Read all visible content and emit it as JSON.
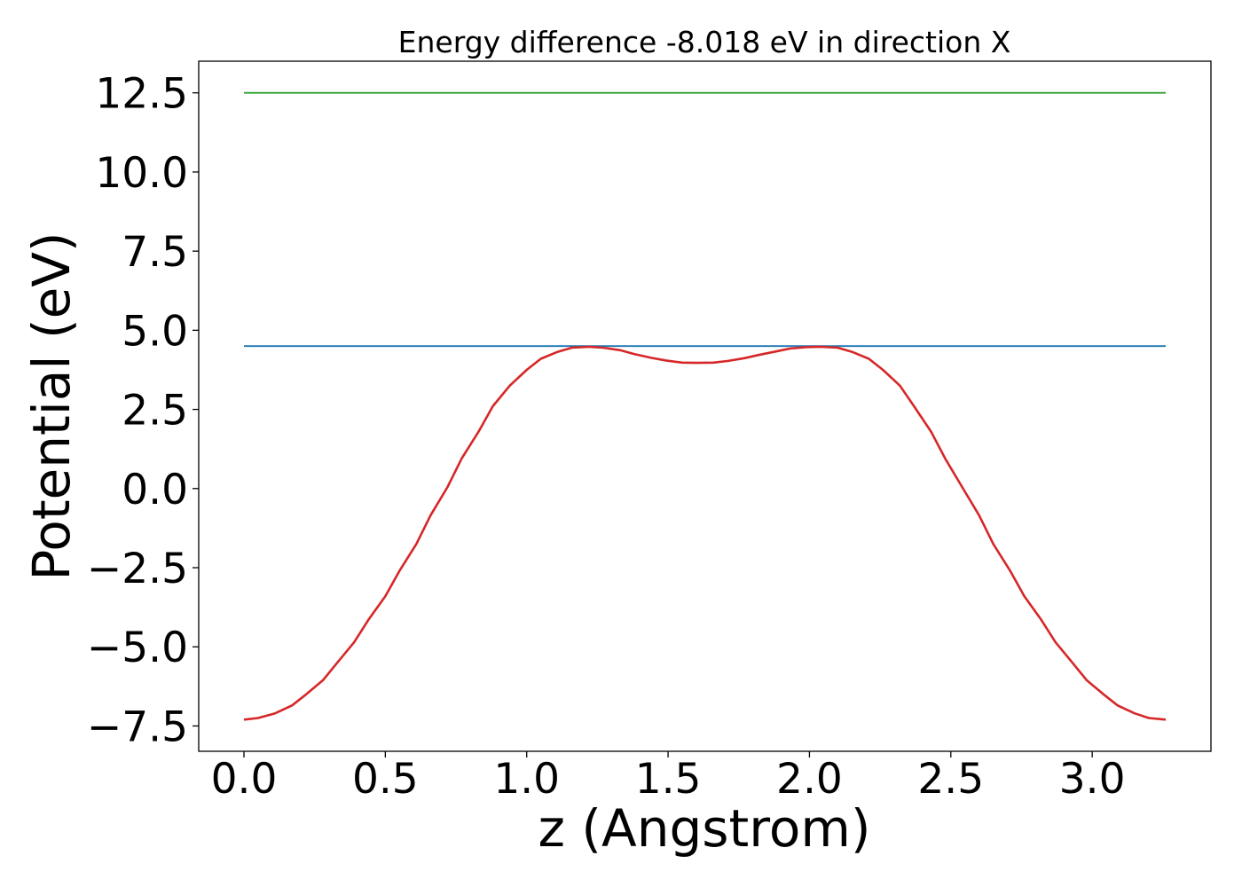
{
  "chart_data": {
    "type": "line",
    "title": "Energy difference -8.018 eV in direction X",
    "xlabel": "z (Angstrom)",
    "ylabel": "Potential (eV)",
    "xlim": [
      -0.16,
      3.42
    ],
    "ylim": [
      -8.3,
      13.5
    ],
    "x_ticks": [
      {
        "value": 0.0,
        "label": "0.0"
      },
      {
        "value": 0.5,
        "label": "0.5"
      },
      {
        "value": 1.0,
        "label": "1.0"
      },
      {
        "value": 1.5,
        "label": "1.5"
      },
      {
        "value": 2.0,
        "label": "2.0"
      },
      {
        "value": 2.5,
        "label": "2.5"
      },
      {
        "value": 3.0,
        "label": "3.0"
      }
    ],
    "y_ticks": [
      {
        "value": -7.5,
        "label": "−7.5"
      },
      {
        "value": -5.0,
        "label": "−5.0"
      },
      {
        "value": -2.5,
        "label": "−2.5"
      },
      {
        "value": 0.0,
        "label": "0.0"
      },
      {
        "value": 2.5,
        "label": "2.5"
      },
      {
        "value": 5.0,
        "label": "5.0"
      },
      {
        "value": 7.5,
        "label": "7.5"
      },
      {
        "value": 10.0,
        "label": "10.0"
      },
      {
        "value": 12.5,
        "label": "12.5"
      }
    ],
    "grid": false,
    "legend": "none",
    "series": [
      {
        "color": "#2ca02c",
        "x": [
          0.0,
          3.26
        ],
        "y": [
          12.5,
          12.5
        ]
      },
      {
        "color": "#1f77b4",
        "x": [
          0.0,
          3.26
        ],
        "y": [
          4.5,
          4.5
        ]
      },
      {
        "color": "#d62728",
        "x": [
          0.0,
          0.05,
          0.11,
          0.17,
          0.22,
          0.28,
          0.33,
          0.39,
          0.44,
          0.5,
          0.55,
          0.61,
          0.66,
          0.72,
          0.77,
          0.83,
          0.88,
          0.94,
          1.0,
          1.05,
          1.11,
          1.16,
          1.22,
          1.27,
          1.33,
          1.38,
          1.44,
          1.49,
          1.55,
          1.6,
          1.66,
          1.71,
          1.77,
          1.82,
          1.88,
          1.93,
          1.99,
          2.04,
          2.1,
          2.15,
          2.21,
          2.26,
          2.32,
          2.37,
          2.43,
          2.48,
          2.54,
          2.6,
          2.65,
          2.71,
          2.76,
          2.82,
          2.87,
          2.93,
          2.98,
          3.04,
          3.09,
          3.15,
          3.2,
          3.26
        ],
        "y": [
          -7.3,
          -7.25,
          -7.1,
          -6.85,
          -6.5,
          -6.05,
          -5.5,
          -4.85,
          -4.15,
          -3.4,
          -2.6,
          -1.75,
          -0.85,
          0.05,
          0.95,
          1.8,
          2.6,
          3.25,
          3.75,
          4.1,
          4.32,
          4.45,
          4.48,
          4.45,
          4.37,
          4.25,
          4.13,
          4.05,
          3.98,
          3.97,
          3.98,
          4.03,
          4.12,
          4.22,
          4.33,
          4.42,
          4.47,
          4.48,
          4.45,
          4.32,
          4.1,
          3.75,
          3.25,
          2.6,
          1.8,
          0.95,
          0.05,
          -0.85,
          -1.75,
          -2.6,
          -3.4,
          -4.15,
          -4.85,
          -5.5,
          -6.05,
          -6.5,
          -6.85,
          -7.1,
          -7.25,
          -7.3
        ]
      }
    ]
  }
}
